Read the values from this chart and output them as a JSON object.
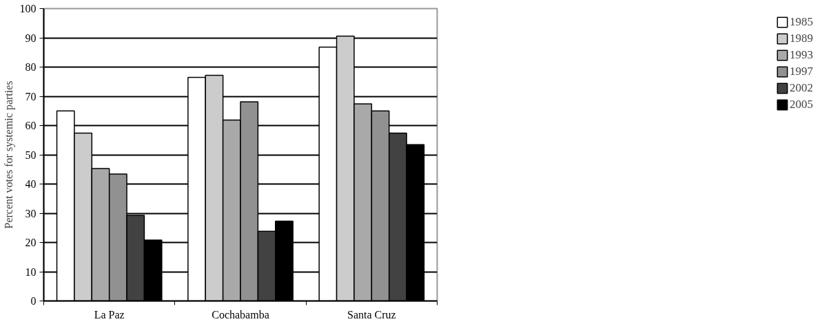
{
  "chart_data": {
    "type": "bar",
    "ylabel": "Percent votes for systemic parties",
    "categories": [
      "La Paz",
      "Cochabamba",
      "Santa Cruz"
    ],
    "series": [
      {
        "name": "1985",
        "color": "#ffffff",
        "values": [
          65,
          76.5,
          86.8
        ]
      },
      {
        "name": "1989",
        "color": "#cccccc",
        "values": [
          57.4,
          77.2,
          90.6
        ]
      },
      {
        "name": "1993",
        "color": "#a9a9a9",
        "values": [
          45.3,
          61.9,
          67.4
        ]
      },
      {
        "name": "1997",
        "color": "#919191",
        "values": [
          43.4,
          68.1,
          65.0
        ]
      },
      {
        "name": "2002",
        "color": "#424242",
        "values": [
          29.3,
          23.8,
          57.4
        ]
      },
      {
        "name": "2005",
        "color": "#000000",
        "values": [
          20.8,
          27.3,
          53.5
        ]
      }
    ],
    "ylim": [
      0,
      100
    ],
    "yticks": [
      0,
      10,
      20,
      30,
      40,
      50,
      60,
      70,
      80,
      90,
      100
    ],
    "grid": "y",
    "legend": "right"
  }
}
